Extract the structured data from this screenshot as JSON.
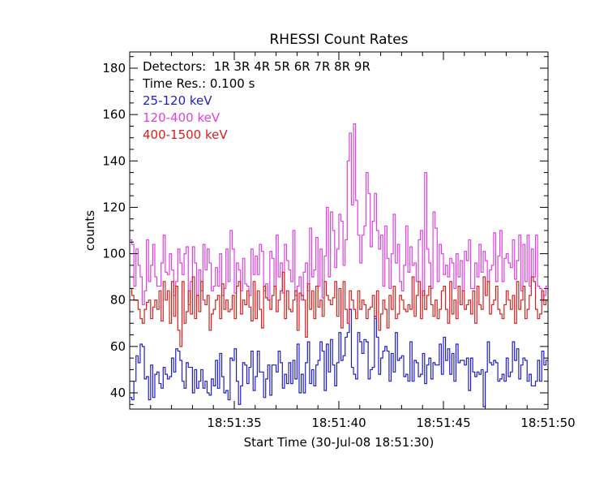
{
  "chart_data": {
    "type": "line",
    "title": "RHESSI Count Rates",
    "xlabel": "Start Time (30-Jul-08 18:51:30)",
    "ylabel": "counts",
    "xlim": [
      0,
      20
    ],
    "ylim": [
      33,
      187
    ],
    "x_ticks": [
      {
        "value": 5,
        "label": "18:51:35"
      },
      {
        "value": 10,
        "label": "18:51:40"
      },
      {
        "value": 15,
        "label": "18:51:45"
      },
      {
        "value": 20,
        "label": "18:51:50"
      }
    ],
    "y_ticks": [
      40,
      60,
      80,
      100,
      120,
      140,
      160,
      180
    ],
    "grid": false,
    "legend_placement": "top-left",
    "annotations": [
      "Detectors:  1R 3R 4R 5R 6R 7R 8R 9R",
      "Time Res.: 0.100 s"
    ],
    "series": [
      {
        "name": "25-120 keV",
        "color": "#1f1fc8",
        "x_start": 0,
        "x_step": 0.1,
        "values": [
          38,
          37,
          45,
          56,
          53,
          61,
          60,
          46,
          47,
          37,
          52,
          38,
          48,
          49,
          44,
          42,
          51,
          48,
          46,
          47,
          55,
          49,
          59,
          58,
          54,
          45,
          42,
          53,
          51,
          51,
          40,
          50,
          42,
          45,
          50,
          42,
          45,
          40,
          39,
          46,
          43,
          54,
          42,
          57,
          47,
          40,
          41,
          37,
          55,
          54,
          59,
          45,
          35,
          43,
          53,
          52,
          44,
          51,
          58,
          41,
          47,
          58,
          49,
          49,
          38,
          46,
          52,
          39,
          52,
          52,
          49,
          58,
          53,
          42,
          48,
          44,
          53,
          44,
          54,
          46,
          61,
          40,
          48,
          40,
          53,
          62,
          44,
          50,
          43,
          52,
          54,
          62,
          58,
          41,
          61,
          49,
          63,
          52,
          43,
          53,
          66,
          54,
          56,
          64,
          66,
          76,
          51,
          48,
          46,
          66,
          62,
          57,
          63,
          62,
          46,
          50,
          51,
          73,
          64,
          48,
          55,
          58,
          60,
          58,
          45,
          57,
          49,
          66,
          54,
          55,
          56,
          47,
          48,
          45,
          62,
          45,
          54,
          53,
          47,
          48,
          57,
          44,
          52,
          55,
          46,
          53,
          52,
          52,
          61,
          48,
          64,
          54,
          59,
          48,
          57,
          45,
          61,
          53,
          54,
          54,
          52,
          55,
          41,
          55,
          49,
          47,
          49,
          48,
          50,
          34,
          49,
          62,
          53,
          52,
          54,
          53,
          45,
          46,
          48,
          45,
          55,
          47,
          49,
          62,
          54,
          59,
          46,
          52,
          55,
          54,
          45,
          48,
          43,
          43,
          45,
          54,
          45,
          58,
          52,
          54
        ]
      },
      {
        "name": "120-400 keV",
        "color": "#e040e0",
        "x_start": 0,
        "x_step": 0.1,
        "values": [
          106,
          104,
          86,
          102,
          95,
          90,
          78,
          84,
          106,
          88,
          95,
          104,
          90,
          86,
          86,
          96,
          108,
          92,
          91,
          100,
          93,
          82,
          88,
          102,
          96,
          91,
          100,
          103,
          78,
          88,
          103,
          96,
          82,
          93,
          84,
          104,
          93,
          102,
          96,
          84,
          86,
          94,
          86,
          100,
          82,
          85,
          102,
          88,
          110,
          102,
          83,
          96,
          93,
          84,
          98,
          87,
          86,
          82,
          102,
          91,
          99,
          91,
          104,
          101,
          84,
          87,
          80,
          101,
          98,
          86,
          108,
          90,
          96,
          83,
          104,
          97,
          93,
          88,
          110,
          82,
          86,
          90,
          80,
          92,
          96,
          84,
          111,
          90,
          93,
          107,
          86,
          102,
          81,
          99,
          120,
          90,
          118,
          110,
          94,
          102,
          117,
          114,
          95,
          106,
          140,
          152,
          121,
          156,
          123,
          108,
          96,
          108,
          112,
          135,
          126,
          103,
          114,
          126,
          110,
          102,
          108,
          86,
          112,
          98,
          85,
          100,
          117,
          96,
          104,
          88,
          84,
          95,
          112,
          92,
          103,
          95,
          96,
          88,
          106,
          110,
          82,
          135,
          102,
          96,
          85,
          118,
          111,
          88,
          104,
          100,
          91,
          95,
          90,
          98,
          96,
          85,
          100,
          90,
          97,
          84,
          101,
          97,
          106,
          85,
          85,
          96,
          90,
          104,
          92,
          101,
          97,
          88,
          93,
          95,
          109,
          88,
          99,
          110,
          88,
          98,
          100,
          96,
          94,
          106,
          89,
          97,
          108,
          84,
          104,
          88,
          108,
          86,
          102,
          90,
          108,
          86,
          85,
          80,
          82,
          86
        ]
      },
      {
        "name": "400-1500 keV",
        "color": "#d82020",
        "x_start": 0,
        "x_step": 0.1,
        "values": [
          85,
          82,
          80,
          80,
          76,
          72,
          70,
          76,
          79,
          80,
          72,
          77,
          80,
          76,
          84,
          71,
          88,
          80,
          84,
          70,
          88,
          73,
          86,
          67,
          60,
          88,
          70,
          75,
          84,
          74,
          90,
          72,
          82,
          75,
          88,
          80,
          78,
          82,
          67,
          74,
          76,
          80,
          82,
          72,
          87,
          76,
          80,
          75,
          76,
          82,
          72,
          86,
          88,
          74,
          80,
          78,
          84,
          77,
          71,
          88,
          72,
          84,
          76,
          68,
          86,
          81,
          80,
          76,
          82,
          86,
          75,
          80,
          84,
          92,
          72,
          84,
          76,
          75,
          80,
          84,
          67,
          83,
          82,
          80,
          64,
          87,
          76,
          84,
          72,
          86,
          77,
          80,
          73,
          88,
          82,
          80,
          78,
          81,
          88,
          73,
          85,
          68,
          88,
          76,
          70,
          84,
          80,
          76,
          72,
          84,
          76,
          80,
          78,
          72,
          76,
          77,
          82,
          72,
          84,
          67,
          74,
          80,
          76,
          68,
          82,
          76,
          86,
          72,
          74,
          82,
          80,
          76,
          75,
          78,
          76,
          90,
          73,
          82,
          88,
          72,
          84,
          76,
          82,
          86,
          78,
          73,
          80,
          72,
          76,
          84,
          86,
          76,
          70,
          88,
          74,
          80,
          72,
          86,
          78,
          84,
          76,
          78,
          80,
          74,
          84,
          70,
          86,
          78,
          76,
          90,
          82,
          88,
          74,
          78,
          80,
          86,
          76,
          74,
          72,
          78,
          84,
          80,
          76,
          82,
          70,
          88,
          76,
          80,
          86,
          72,
          76,
          82,
          90,
          88,
          76,
          72,
          74,
          84,
          78,
          80
        ]
      }
    ]
  }
}
